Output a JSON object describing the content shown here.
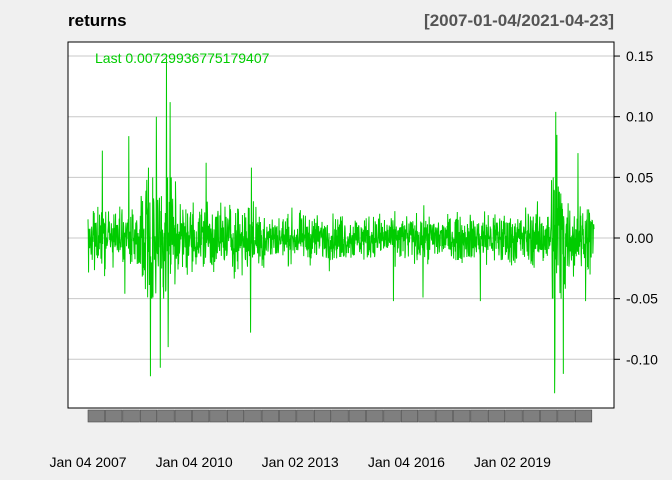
{
  "chart_data": {
    "type": "line",
    "title": "returns",
    "date_range": "[2007-01-04/2021-04-23]",
    "last_label": "Last 0.00729936775179407",
    "x_ticks": [
      "Jan 04 2007",
      "Jan 04 2010",
      "Jan 02 2013",
      "Jan 04 2016",
      "Jan 02 2019"
    ],
    "x_range": [
      "2007-01-04",
      "2021-04-23"
    ],
    "y_ticks": [
      "0.15",
      "0.10",
      "0.05",
      "0.00",
      "-0.05",
      "-0.10"
    ],
    "ylim": [
      -0.14,
      0.16
    ],
    "grid": true,
    "series": [
      {
        "color": "#00cc00",
        "last": 0.00729936775179407,
        "volatility_regimes": [
          {
            "from": "2007-01-04",
            "to": "2008-07-01",
            "sd": 0.011
          },
          {
            "from": "2008-07-01",
            "to": "2009-07-01",
            "sd": 0.028
          },
          {
            "from": "2009-07-01",
            "to": "2012-01-01",
            "sd": 0.014
          },
          {
            "from": "2012-01-01",
            "to": "2018-01-01",
            "sd": 0.009
          },
          {
            "from": "2018-01-01",
            "to": "2020-02-01",
            "sd": 0.011
          },
          {
            "from": "2020-02-01",
            "to": "2020-07-01",
            "sd": 0.03
          },
          {
            "from": "2020-07-01",
            "to": "2021-04-23",
            "sd": 0.014
          }
        ],
        "notable_points": [
          {
            "date": "2007-06-01",
            "value": 0.072
          },
          {
            "date": "2008-01-20",
            "value": -0.046
          },
          {
            "date": "2008-03-01",
            "value": 0.084
          },
          {
            "date": "2008-09-20",
            "value": 0.058
          },
          {
            "date": "2008-10-10",
            "value": -0.114
          },
          {
            "date": "2008-12-10",
            "value": 0.1
          },
          {
            "date": "2009-01-20",
            "value": -0.107
          },
          {
            "date": "2009-03-23",
            "value": 0.148
          },
          {
            "date": "2009-04-10",
            "value": -0.09
          },
          {
            "date": "2009-05-01",
            "value": 0.112
          },
          {
            "date": "2010-05-06",
            "value": 0.062
          },
          {
            "date": "2011-08-08",
            "value": -0.078
          },
          {
            "date": "2011-08-18",
            "value": 0.058
          },
          {
            "date": "2015-08-24",
            "value": -0.052
          },
          {
            "date": "2016-06-24",
            "value": -0.049
          },
          {
            "date": "2018-02-05",
            "value": -0.052
          },
          {
            "date": "2020-03-12",
            "value": -0.128
          },
          {
            "date": "2020-03-16",
            "value": -0.097
          },
          {
            "date": "2020-03-24",
            "value": 0.104
          },
          {
            "date": "2020-04-06",
            "value": 0.085
          },
          {
            "date": "2020-06-11",
            "value": -0.112
          },
          {
            "date": "2020-11-09",
            "value": 0.07
          },
          {
            "date": "2021-01-27",
            "value": -0.052
          }
        ]
      }
    ]
  }
}
